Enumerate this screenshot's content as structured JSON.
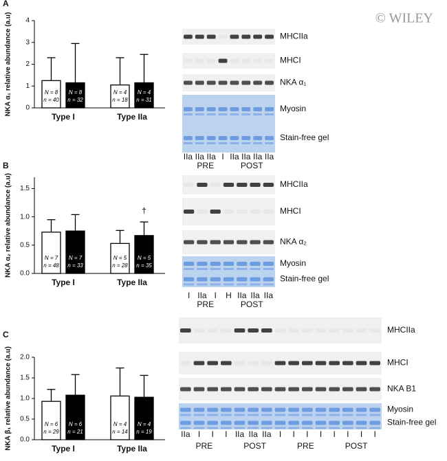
{
  "watermark": "© WILEY",
  "chart_data": [
    {
      "type": "bar",
      "panel": "A",
      "ylabel": "NKA α₁ relative abundance (a.u)",
      "categories": [
        "Type I",
        "Type IIa"
      ],
      "ylim": [
        0,
        4
      ],
      "yticks": [
        0,
        1,
        2,
        3,
        4
      ],
      "series": [
        {
          "color": "#ffffff",
          "values": [
            1.25,
            1.05
          ],
          "errors": [
            1.05,
            1.25
          ],
          "N_labels": [
            "N = 8",
            "N = 4"
          ],
          "n_labels": [
            "n = 40",
            "n = 18"
          ]
        },
        {
          "color": "#000000",
          "values": [
            1.15,
            1.15
          ],
          "errors": [
            1.8,
            1.3
          ],
          "N_labels": [
            "N = 8",
            "N = 4"
          ],
          "n_labels": [
            "n = 32",
            "n = 31"
          ]
        }
      ],
      "blot": {
        "rows": [
          "MHCIIa",
          "MHCI",
          "NKA α₁",
          "Myosin",
          "Stain-free gel"
        ],
        "lanes": [
          "IIa",
          "IIa",
          "IIa",
          "I",
          "IIa",
          "IIa",
          "IIa",
          "IIa"
        ],
        "groups": [
          "PRE",
          "POST"
        ]
      }
    },
    {
      "type": "bar",
      "panel": "B",
      "ylabel": "NKA α₂ relative abundance (a.u)",
      "annotation": "†",
      "categories": [
        "Type I",
        "Type IIa"
      ],
      "ylim": [
        0,
        1.7
      ],
      "yticks": [
        {
          "value": 0,
          "label": "0.0"
        },
        {
          "value": 0.5,
          "label": "0.5"
        },
        {
          "value": 1,
          "label": "1.0"
        },
        {
          "value": 1.5,
          "label": "1.5"
        }
      ],
      "series": [
        {
          "color": "#ffffff",
          "values": [
            0.73,
            0.53
          ],
          "errors": [
            0.22,
            0.23
          ],
          "N_labels": [
            "N = 7",
            "N = 5"
          ],
          "n_labels": [
            "n = 48",
            "n = 28"
          ]
        },
        {
          "color": "#000000",
          "values": [
            0.75,
            0.67
          ],
          "errors": [
            0.29,
            0.24
          ],
          "N_labels": [
            "N = 7",
            "N = 5"
          ],
          "n_labels": [
            "n = 33",
            "n = 35"
          ]
        }
      ],
      "blot": {
        "rows": [
          "MHCIIa",
          "MHCI",
          "NKA α₂",
          "Myosin",
          "Stain-free gel"
        ],
        "lanes": [
          "I",
          "IIa",
          "I",
          "H",
          "IIa",
          "IIa",
          "IIa"
        ],
        "groups": [
          "PRE",
          "POST"
        ]
      }
    },
    {
      "type": "bar",
      "panel": "C",
      "ylabel": "NKA β₁ relative abundance (a.u)",
      "categories": [
        "Type I",
        "Type IIa"
      ],
      "ylim": [
        0,
        2
      ],
      "yticks": [
        {
          "value": 0,
          "label": "0.0"
        },
        {
          "value": 0.5,
          "label": "0.5"
        },
        {
          "value": 1,
          "label": "1.0"
        },
        {
          "value": 1.5,
          "label": "1.5"
        },
        {
          "value": 2,
          "label": "2.0"
        }
      ],
      "series": [
        {
          "color": "#ffffff",
          "values": [
            0.93,
            1.06
          ],
          "errors": [
            0.29,
            0.68
          ],
          "N_labels": [
            "N = 6",
            "N = 4"
          ],
          "n_labels": [
            "n = 29",
            "n = 14"
          ]
        },
        {
          "color": "#000000",
          "values": [
            1.08,
            1.03
          ],
          "errors": [
            0.5,
            0.53
          ],
          "N_labels": [
            "N = 6",
            "N = 4"
          ],
          "n_labels": [
            "n = 21",
            "n = 19"
          ]
        }
      ],
      "blot": {
        "rows": [
          "MHCIIa",
          "MHCI",
          "NKA B1",
          "Myosin",
          "Stain-free gel"
        ],
        "lanes": [
          "IIa",
          "I",
          "I",
          "I",
          "IIa",
          "IIa",
          "IIa",
          "I",
          "I",
          "I",
          "I",
          "I",
          "I",
          "I",
          "I"
        ],
        "groups": [
          "PRE",
          "POST",
          "PRE",
          "POST"
        ]
      }
    }
  ]
}
